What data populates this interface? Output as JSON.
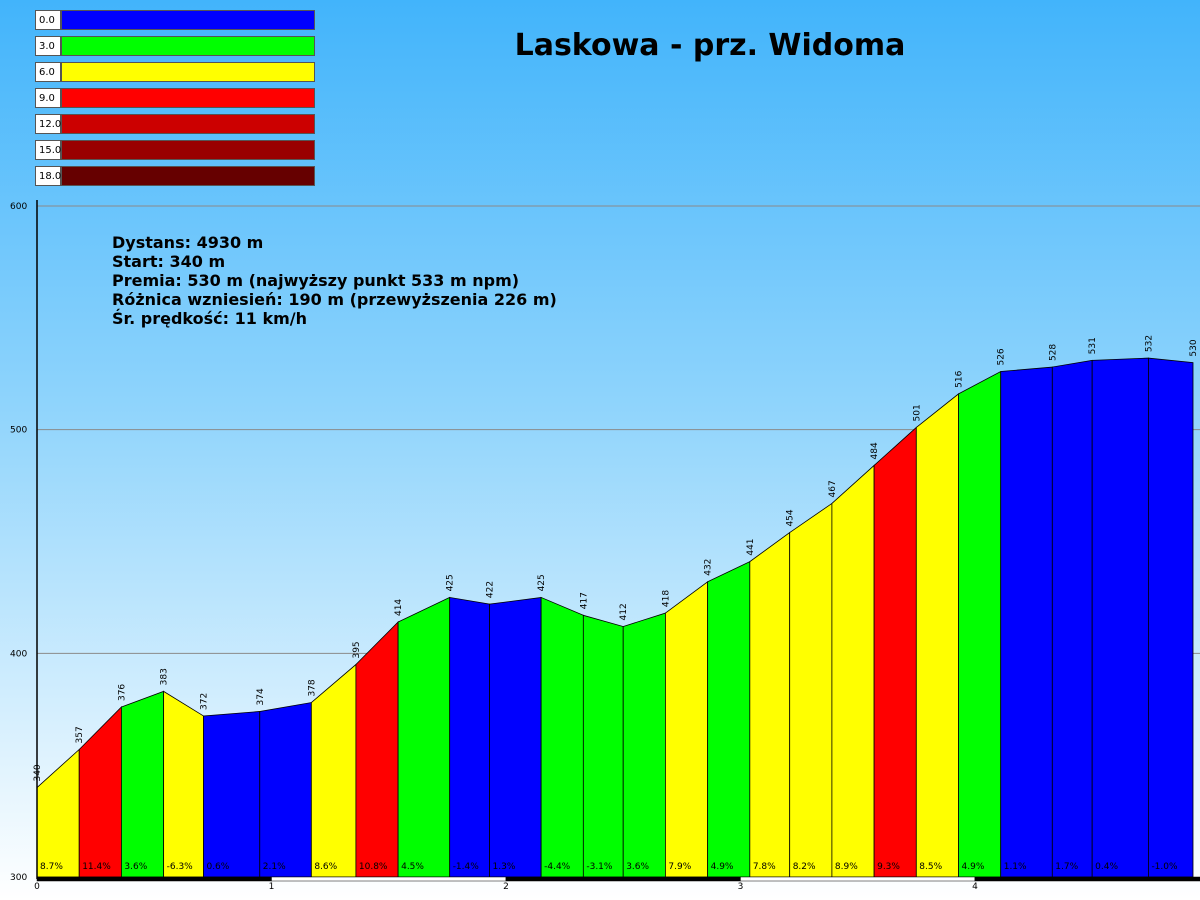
{
  "title": "Laskowa - prz. Widoma",
  "stats": [
    "Dystans: 4930 m",
    "Start: 340 m",
    "Premia: 530 m (najwyższy punkt 533 m npm)",
    "Różnica wzniesień: 190 m (przewyższenia 226 m)",
    "Śr. prędkość: 11 km/h"
  ],
  "legend": [
    {
      "label": "0.0",
      "color": "#0000ff"
    },
    {
      "label": "3.0",
      "color": "#00ff00"
    },
    {
      "label": "6.0",
      "color": "#ffff00"
    },
    {
      "label": "9.0",
      "color": "#ff0000"
    },
    {
      "label": "12.0",
      "color": "#cc0000"
    },
    {
      "label": "15.0",
      "color": "#990000"
    },
    {
      "label": "18.0",
      "color": "#660000"
    }
  ],
  "chart_data": {
    "type": "area",
    "title": "Laskowa - prz. Widoma",
    "xlabel": "",
    "ylabel": "",
    "xlim": [
      0,
      4.93
    ],
    "ylim": [
      300,
      600
    ],
    "x_ticks": [
      "0",
      "1",
      "2",
      "3",
      "4"
    ],
    "y_ticks": [
      "300",
      "400",
      "500",
      "600"
    ],
    "grid": true,
    "points": [
      {
        "x": 0.0,
        "y": 340,
        "label": "340"
      },
      {
        "x": 0.18,
        "y": 357,
        "label": "357"
      },
      {
        "x": 0.36,
        "y": 376,
        "label": "376"
      },
      {
        "x": 0.54,
        "y": 383,
        "label": "383"
      },
      {
        "x": 0.71,
        "y": 372,
        "label": "372"
      },
      {
        "x": 0.95,
        "y": 374,
        "label": "374"
      },
      {
        "x": 1.17,
        "y": 378,
        "label": "378"
      },
      {
        "x": 1.36,
        "y": 395,
        "label": "395"
      },
      {
        "x": 1.54,
        "y": 414,
        "label": "414"
      },
      {
        "x": 1.76,
        "y": 425,
        "label": "425"
      },
      {
        "x": 1.93,
        "y": 422,
        "label": "422"
      },
      {
        "x": 2.15,
        "y": 425,
        "label": "425"
      },
      {
        "x": 2.33,
        "y": 417,
        "label": "417"
      },
      {
        "x": 2.5,
        "y": 412,
        "label": "412"
      },
      {
        "x": 2.68,
        "y": 418,
        "label": "418"
      },
      {
        "x": 2.86,
        "y": 432,
        "label": "432"
      },
      {
        "x": 3.04,
        "y": 441,
        "label": "441"
      },
      {
        "x": 3.21,
        "y": 454,
        "label": "454"
      },
      {
        "x": 3.39,
        "y": 467,
        "label": "467"
      },
      {
        "x": 3.57,
        "y": 484,
        "label": "484"
      },
      {
        "x": 3.75,
        "y": 501,
        "label": "501"
      },
      {
        "x": 3.93,
        "y": 516,
        "label": "516"
      },
      {
        "x": 4.11,
        "y": 526,
        "label": "526"
      },
      {
        "x": 4.33,
        "y": 528,
        "label": "528"
      },
      {
        "x": 4.5,
        "y": 531,
        "label": "531"
      },
      {
        "x": 4.74,
        "y": 532,
        "label": "532"
      },
      {
        "x": 4.93,
        "y": 530,
        "label": "530"
      }
    ],
    "segments": [
      {
        "grade": "8.7%",
        "color": "#ffff00"
      },
      {
        "grade": "11.4%",
        "color": "#ff0000"
      },
      {
        "grade": "3.6%",
        "color": "#00ff00"
      },
      {
        "grade": "-6.3%",
        "color": "#ffff00"
      },
      {
        "grade": "0.6%",
        "color": "#0000ff"
      },
      {
        "grade": "2.1%",
        "color": "#0000ff"
      },
      {
        "grade": "8.6%",
        "color": "#ffff00"
      },
      {
        "grade": "10.8%",
        "color": "#ff0000"
      },
      {
        "grade": "4.5%",
        "color": "#00ff00"
      },
      {
        "grade": "-1.4%",
        "color": "#0000ff"
      },
      {
        "grade": "1.3%",
        "color": "#0000ff"
      },
      {
        "grade": "-4.4%",
        "color": "#00ff00"
      },
      {
        "grade": "-3.1%",
        "color": "#00ff00"
      },
      {
        "grade": "3.6%",
        "color": "#00ff00"
      },
      {
        "grade": "7.9%",
        "color": "#ffff00"
      },
      {
        "grade": "4.9%",
        "color": "#00ff00"
      },
      {
        "grade": "7.8%",
        "color": "#ffff00"
      },
      {
        "grade": "8.2%",
        "color": "#ffff00"
      },
      {
        "grade": "8.9%",
        "color": "#ffff00"
      },
      {
        "grade": "9.3%",
        "color": "#ff0000"
      },
      {
        "grade": "8.5%",
        "color": "#ffff00"
      },
      {
        "grade": "4.9%",
        "color": "#00ff00"
      },
      {
        "grade": "1.1%",
        "color": "#0000ff"
      },
      {
        "grade": "1.7%",
        "color": "#0000ff"
      },
      {
        "grade": "0.4%",
        "color": "#0000ff"
      },
      {
        "grade": "-1.0%",
        "color": "#0000ff"
      }
    ]
  }
}
